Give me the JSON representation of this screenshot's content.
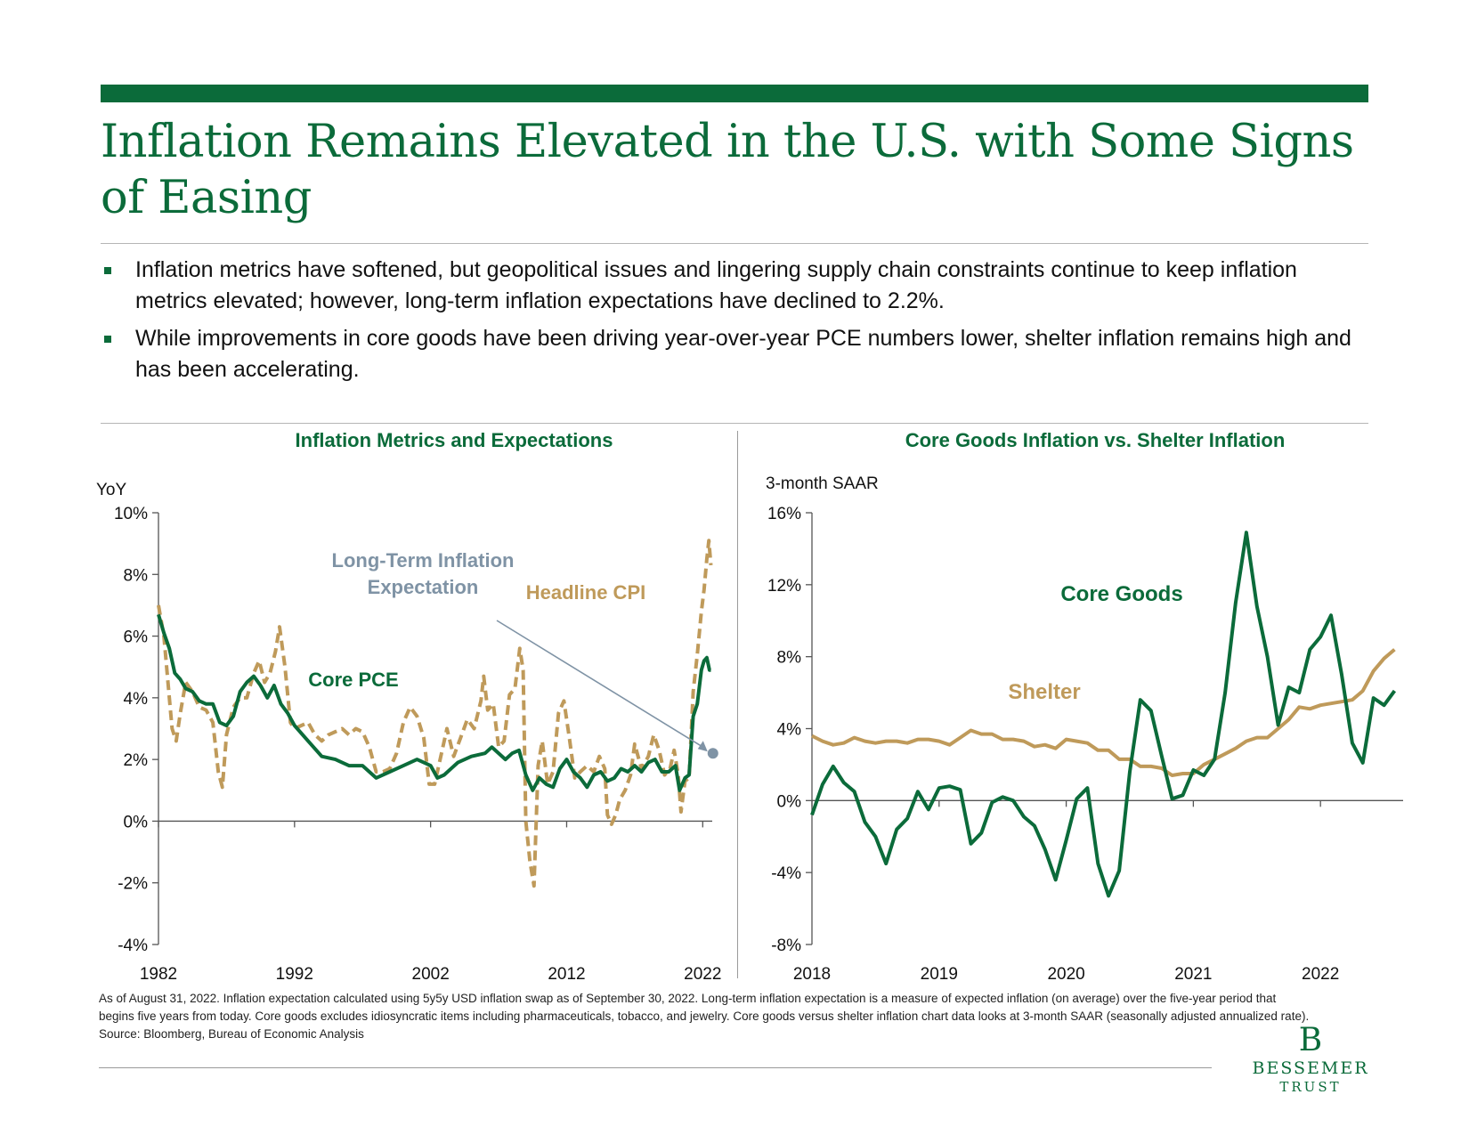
{
  "header": {
    "title": "Inflation Remains Elevated in the U.S. with Some Signs of Easing"
  },
  "bullets": [
    "Inflation metrics have softened, but geopolitical issues and lingering supply chain constraints continue to keep inflation metrics elevated; however, long-term inflation expectations have declined to 2.2%.",
    "While improvements in core goods have been driving year-over-year PCE numbers lower, shelter inflation remains high and has been accelerating."
  ],
  "colors": {
    "brand": "#0b6b3a",
    "cpi": "#bf9a5a",
    "expectation": "#7f93a5",
    "goods": "#0b6b3a",
    "shelter": "#bf9a5a"
  },
  "chart_data": [
    {
      "type": "line",
      "title": "Inflation Metrics and Expectations",
      "ylabel": "YoY",
      "ylim": [
        -4,
        10
      ],
      "y_ticks": [
        "10%",
        "8%",
        "6%",
        "4%",
        "2%",
        "0%",
        "-2%",
        "-4%"
      ],
      "y_tick_values": [
        10,
        8,
        6,
        4,
        2,
        0,
        -2,
        -4
      ],
      "xlim": [
        1982,
        2022.7
      ],
      "x_ticks": [
        "1982",
        "1992",
        "2002",
        "2012",
        "2022"
      ],
      "x_tick_values": [
        1982,
        1992,
        2002,
        2012,
        2022
      ],
      "series": [
        {
          "name": "Headline CPI",
          "style": "dashed",
          "x": [
            1982.0,
            1982.4,
            1982.8,
            1983.0,
            1983.3,
            1983.6,
            1984.0,
            1984.5,
            1985.0,
            1985.5,
            1986.0,
            1986.4,
            1986.7,
            1987.0,
            1987.5,
            1988.0,
            1988.5,
            1989.0,
            1989.4,
            1989.8,
            1990.2,
            1990.6,
            1990.9,
            1991.3,
            1991.7,
            1992.0,
            1992.5,
            1993.0,
            1993.5,
            1994.0,
            1994.5,
            1995.0,
            1995.5,
            1996.0,
            1996.5,
            1997.0,
            1997.5,
            1998.0,
            1998.5,
            1999.0,
            1999.5,
            2000.0,
            2000.5,
            2001.0,
            2001.5,
            2001.9,
            2002.3,
            2002.8,
            2003.2,
            2003.7,
            2004.2,
            2004.7,
            2005.2,
            2005.7,
            2005.9,
            2006.2,
            2006.6,
            2007.0,
            2007.4,
            2007.8,
            2008.2,
            2008.55,
            2008.8,
            2009.0,
            2009.3,
            2009.6,
            2009.9,
            2010.2,
            2010.6,
            2011.0,
            2011.4,
            2011.8,
            2012.2,
            2012.6,
            2013.0,
            2013.5,
            2014.0,
            2014.4,
            2014.8,
            2015.0,
            2015.3,
            2015.6,
            2015.9,
            2016.3,
            2016.7,
            2017.0,
            2017.5,
            2018.0,
            2018.4,
            2018.8,
            2019.2,
            2019.6,
            2019.9,
            2020.2,
            2020.4,
            2020.7,
            2021.0,
            2021.3,
            2021.6,
            2021.9,
            2022.1,
            2022.3,
            2022.45,
            2022.6
          ],
          "values": [
            7.0,
            6.0,
            4.0,
            3.0,
            2.6,
            3.5,
            4.5,
            4.2,
            3.7,
            3.6,
            3.2,
            1.6,
            1.1,
            2.8,
            3.7,
            4.0,
            4.0,
            4.8,
            5.2,
            4.5,
            4.8,
            5.5,
            6.3,
            5.0,
            3.2,
            3.0,
            3.1,
            3.2,
            2.8,
            2.6,
            2.8,
            2.9,
            3.0,
            2.8,
            3.0,
            2.9,
            2.4,
            1.6,
            1.6,
            1.7,
            2.2,
            3.2,
            3.7,
            3.4,
            2.7,
            1.2,
            1.2,
            2.2,
            3.0,
            2.1,
            2.7,
            3.3,
            3.0,
            3.9,
            4.7,
            3.6,
            3.8,
            2.4,
            2.6,
            4.1,
            4.3,
            5.6,
            4.9,
            0.0,
            -1.3,
            -2.1,
            1.8,
            2.6,
            1.2,
            1.6,
            3.5,
            3.9,
            2.7,
            1.4,
            1.6,
            1.8,
            1.6,
            2.1,
            1.7,
            0.2,
            -0.1,
            0.2,
            0.7,
            1.0,
            1.5,
            2.5,
            1.7,
            2.1,
            2.8,
            2.3,
            1.5,
            1.7,
            2.3,
            1.5,
            0.3,
            1.3,
            1.4,
            4.2,
            5.4,
            6.8,
            7.5,
            8.5,
            9.1,
            8.3
          ]
        },
        {
          "name": "Core PCE",
          "style": "solid",
          "x": [
            1982.0,
            1982.4,
            1982.8,
            1983.2,
            1983.6,
            1984.0,
            1984.5,
            1985.0,
            1985.5,
            1986.0,
            1986.5,
            1987.0,
            1987.5,
            1988.0,
            1988.5,
            1989.0,
            1989.5,
            1990.0,
            1990.5,
            1991.0,
            1991.5,
            1992.0,
            1993.0,
            1994.0,
            1995.0,
            1996.0,
            1997.0,
            1998.0,
            1999.0,
            2000.0,
            2001.0,
            2002.0,
            2002.5,
            2003.0,
            2004.0,
            2005.0,
            2006.0,
            2006.5,
            2007.0,
            2007.5,
            2008.0,
            2008.5,
            2009.0,
            2009.5,
            2010.0,
            2010.5,
            2011.0,
            2011.5,
            2012.0,
            2012.5,
            2013.0,
            2013.5,
            2014.0,
            2014.5,
            2015.0,
            2015.5,
            2016.0,
            2016.5,
            2017.0,
            2017.5,
            2018.0,
            2018.5,
            2019.0,
            2019.5,
            2020.0,
            2020.3,
            2020.7,
            2021.0,
            2021.3,
            2021.6,
            2021.9,
            2022.1,
            2022.3,
            2022.5,
            2022.6
          ],
          "values": [
            6.7,
            6.1,
            5.6,
            4.8,
            4.6,
            4.3,
            4.2,
            3.9,
            3.8,
            3.8,
            3.2,
            3.1,
            3.4,
            4.2,
            4.5,
            4.7,
            4.4,
            4.0,
            4.4,
            3.8,
            3.5,
            3.1,
            2.6,
            2.1,
            2.0,
            1.8,
            1.8,
            1.4,
            1.6,
            1.8,
            2.0,
            1.8,
            1.4,
            1.5,
            1.9,
            2.1,
            2.2,
            2.4,
            2.2,
            2.0,
            2.2,
            2.3,
            1.5,
            1.0,
            1.4,
            1.2,
            1.1,
            1.7,
            2.0,
            1.6,
            1.4,
            1.1,
            1.5,
            1.6,
            1.3,
            1.4,
            1.7,
            1.6,
            1.8,
            1.6,
            1.9,
            2.0,
            1.6,
            1.6,
            1.8,
            1.0,
            1.4,
            1.5,
            3.4,
            3.8,
            4.9,
            5.2,
            5.3,
            4.9,
            4.9
          ]
        },
        {
          "name": "Long-Term Inflation Expectation",
          "style": "marker",
          "x": [
            2022.75
          ],
          "values": [
            2.2
          ]
        }
      ],
      "annotations": [
        {
          "text": "Long-Term Inflation",
          "color": "expectation"
        },
        {
          "text": "Expectation",
          "color": "expectation"
        },
        {
          "text": "Headline CPI",
          "color": "cpi"
        },
        {
          "text": "Core PCE",
          "color": "brand"
        }
      ]
    },
    {
      "type": "line",
      "title": "Core Goods Inflation vs. Shelter Inflation",
      "ylabel": "3-month SAAR",
      "ylim": [
        -8,
        16
      ],
      "y_ticks": [
        "16%",
        "12%",
        "8%",
        "4%",
        "0%",
        "-4%",
        "-8%"
      ],
      "y_tick_values": [
        16,
        12,
        8,
        4,
        0,
        -4,
        -8
      ],
      "xlim": [
        2018.0,
        2022.65
      ],
      "x_ticks": [
        "2018",
        "2019",
        "2020",
        "2021",
        "2022"
      ],
      "x_tick_values": [
        2018,
        2019,
        2020,
        2021,
        2022
      ],
      "series": [
        {
          "name": "Core Goods",
          "x": [
            2018.0,
            2018.083,
            2018.167,
            2018.25,
            2018.333,
            2018.417,
            2018.5,
            2018.583,
            2018.667,
            2018.75,
            2018.833,
            2018.917,
            2019.0,
            2019.083,
            2019.167,
            2019.25,
            2019.333,
            2019.417,
            2019.5,
            2019.583,
            2019.667,
            2019.75,
            2019.833,
            2019.917,
            2020.0,
            2020.083,
            2020.167,
            2020.25,
            2020.333,
            2020.417,
            2020.5,
            2020.583,
            2020.667,
            2020.75,
            2020.833,
            2020.917,
            2021.0,
            2021.083,
            2021.167,
            2021.25,
            2021.333,
            2021.417,
            2021.5,
            2021.583,
            2021.667,
            2021.75,
            2021.833,
            2021.917,
            2022.0,
            2022.083,
            2022.167,
            2022.25,
            2022.333,
            2022.417,
            2022.5,
            2022.583
          ],
          "values": [
            -0.8,
            0.9,
            1.9,
            1.0,
            0.5,
            -1.2,
            -2.0,
            -3.5,
            -1.6,
            -1.0,
            0.5,
            -0.5,
            0.7,
            0.8,
            0.6,
            -2.4,
            -1.8,
            -0.1,
            0.2,
            0.0,
            -0.9,
            -1.4,
            -2.7,
            -4.4,
            -2.2,
            0.1,
            0.7,
            -3.5,
            -5.3,
            -3.9,
            1.6,
            5.6,
            5.0,
            2.5,
            0.1,
            0.3,
            1.7,
            1.4,
            2.3,
            6.0,
            11.0,
            14.9,
            10.8,
            8.0,
            4.2,
            6.3,
            6.0,
            8.4,
            9.1,
            10.3,
            7.0,
            3.2,
            2.1,
            5.7,
            5.3,
            6.1
          ]
        },
        {
          "name": "Shelter",
          "x": [
            2018.0,
            2018.083,
            2018.167,
            2018.25,
            2018.333,
            2018.417,
            2018.5,
            2018.583,
            2018.667,
            2018.75,
            2018.833,
            2018.917,
            2019.0,
            2019.083,
            2019.167,
            2019.25,
            2019.333,
            2019.417,
            2019.5,
            2019.583,
            2019.667,
            2019.75,
            2019.833,
            2019.917,
            2020.0,
            2020.083,
            2020.167,
            2020.25,
            2020.333,
            2020.417,
            2020.5,
            2020.583,
            2020.667,
            2020.75,
            2020.833,
            2020.917,
            2021.0,
            2021.083,
            2021.167,
            2021.25,
            2021.333,
            2021.417,
            2021.5,
            2021.583,
            2021.667,
            2021.75,
            2021.833,
            2021.917,
            2022.0,
            2022.083,
            2022.167,
            2022.25,
            2022.333,
            2022.417,
            2022.5,
            2022.583
          ],
          "values": [
            3.6,
            3.3,
            3.1,
            3.2,
            3.5,
            3.3,
            3.2,
            3.3,
            3.3,
            3.2,
            3.4,
            3.4,
            3.3,
            3.1,
            3.5,
            3.9,
            3.7,
            3.7,
            3.4,
            3.4,
            3.3,
            3.0,
            3.1,
            2.9,
            3.4,
            3.3,
            3.2,
            2.8,
            2.8,
            2.3,
            2.3,
            1.9,
            1.9,
            1.8,
            1.4,
            1.5,
            1.5,
            2.0,
            2.3,
            2.6,
            2.9,
            3.3,
            3.5,
            3.5,
            4.0,
            4.5,
            5.2,
            5.1,
            5.3,
            5.4,
            5.5,
            5.6,
            6.1,
            7.2,
            7.9,
            8.4
          ]
        }
      ],
      "annotations": [
        {
          "text": "Core Goods",
          "color": "goods"
        },
        {
          "text": "Shelter",
          "color": "shelter"
        }
      ]
    }
  ],
  "footnote": {
    "text": "As of August 31, 2022. Inflation expectation calculated using 5y5y USD inflation swap as of September 30, 2022. Long-term inflation expectation is a measure of expected inflation (on average) over the five-year period that begins five years from today. Core goods excludes idiosyncratic items including pharmaceuticals, tobacco, and jewelry. Core goods versus shelter inflation chart data looks at 3-month SAAR (seasonally adjusted annualized rate).",
    "source": "Source: Bloomberg, Bureau of Economic Analysis"
  },
  "logo": {
    "monogram": "B",
    "name": "BESSEMER",
    "sub": "TRUST"
  }
}
